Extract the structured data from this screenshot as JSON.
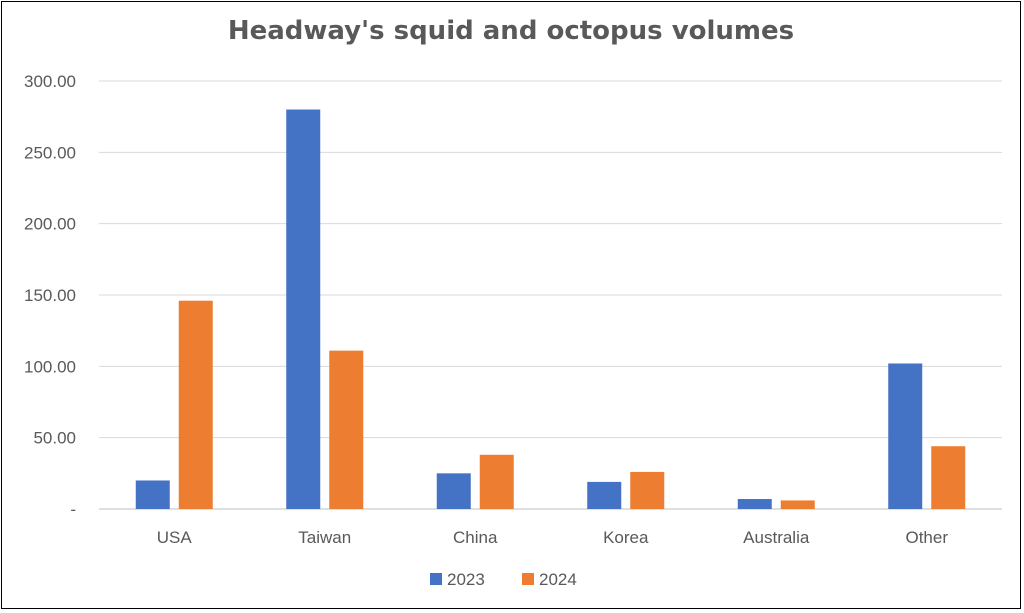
{
  "chart_data": {
    "type": "bar",
    "title": "Headway's squid and octopus volumes",
    "xlabel": "",
    "ylabel": "",
    "categories": [
      "USA",
      "Taiwan",
      "China",
      "Korea",
      "Australia",
      "Other"
    ],
    "series": [
      {
        "name": "2023",
        "color": "#4472C4",
        "values": [
          20,
          280,
          25,
          19,
          7,
          102
        ]
      },
      {
        "name": "2024",
        "color": "#ED7D31",
        "values": [
          146,
          111,
          38,
          26,
          6,
          44
        ]
      }
    ],
    "ylim": [
      0,
      300
    ],
    "yticks": [
      0,
      50,
      100,
      150,
      200,
      250,
      300
    ],
    "ytick_labels": [
      "-",
      "50.00",
      "100.00",
      "150.00",
      "200.00",
      "250.00",
      "300.00"
    ],
    "grid": true,
    "gridline_color": "#D9D9D9",
    "legend_position": "bottom"
  }
}
